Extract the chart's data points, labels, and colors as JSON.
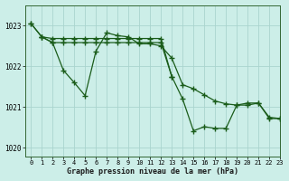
{
  "title": "Graphe pression niveau de la mer (hPa)",
  "bg_color": "#cceee8",
  "grid_color": "#aad4ce",
  "line_color": "#1a5c1a",
  "marker_color": "#1a5c1a",
  "xlim": [
    -0.5,
    23
  ],
  "ylim": [
    1019.8,
    1023.5
  ],
  "yticks": [
    1020,
    1021,
    1022,
    1023
  ],
  "xticks": [
    0,
    1,
    2,
    3,
    4,
    5,
    6,
    7,
    8,
    9,
    10,
    11,
    12,
    13,
    14,
    15,
    16,
    17,
    18,
    19,
    20,
    21,
    22,
    23
  ],
  "series1_x": [
    0,
    1,
    2,
    3,
    4,
    5,
    6,
    7,
    8,
    9,
    10,
    11,
    12,
    13
  ],
  "series1_y": [
    1023.05,
    1022.72,
    1022.68,
    1022.68,
    1022.68,
    1022.68,
    1022.68,
    1022.68,
    1022.68,
    1022.68,
    1022.68,
    1022.68,
    1022.68,
    1021.75
  ],
  "series2_x": [
    0,
    1,
    2,
    3,
    4,
    5,
    6,
    7,
    8,
    9,
    10,
    11,
    12,
    13,
    14,
    15,
    16,
    17,
    18,
    19,
    20,
    21,
    22,
    23
  ],
  "series2_y": [
    1023.05,
    1022.72,
    1022.58,
    1021.9,
    1021.6,
    1021.28,
    1022.37,
    1022.82,
    1022.75,
    1022.72,
    1022.55,
    1022.55,
    1022.5,
    1022.2,
    1021.55,
    1021.45,
    1021.3,
    1021.15,
    1021.08,
    1021.05,
    1021.05,
    1021.1,
    1020.72,
    1020.72
  ],
  "series3_x": [
    1,
    2,
    3,
    4,
    5,
    6,
    7,
    8,
    9,
    10,
    11,
    12,
    13,
    14,
    15,
    16,
    17,
    18,
    19,
    20,
    21,
    22,
    23
  ],
  "series3_y": [
    1022.72,
    1022.58,
    1022.58,
    1022.58,
    1022.58,
    1022.58,
    1022.58,
    1022.58,
    1022.58,
    1022.58,
    1022.58,
    1022.58,
    1021.75,
    1021.2,
    1020.42,
    1020.52,
    1020.48,
    1020.48,
    1021.05,
    1021.1,
    1021.1,
    1020.75,
    1020.72
  ]
}
